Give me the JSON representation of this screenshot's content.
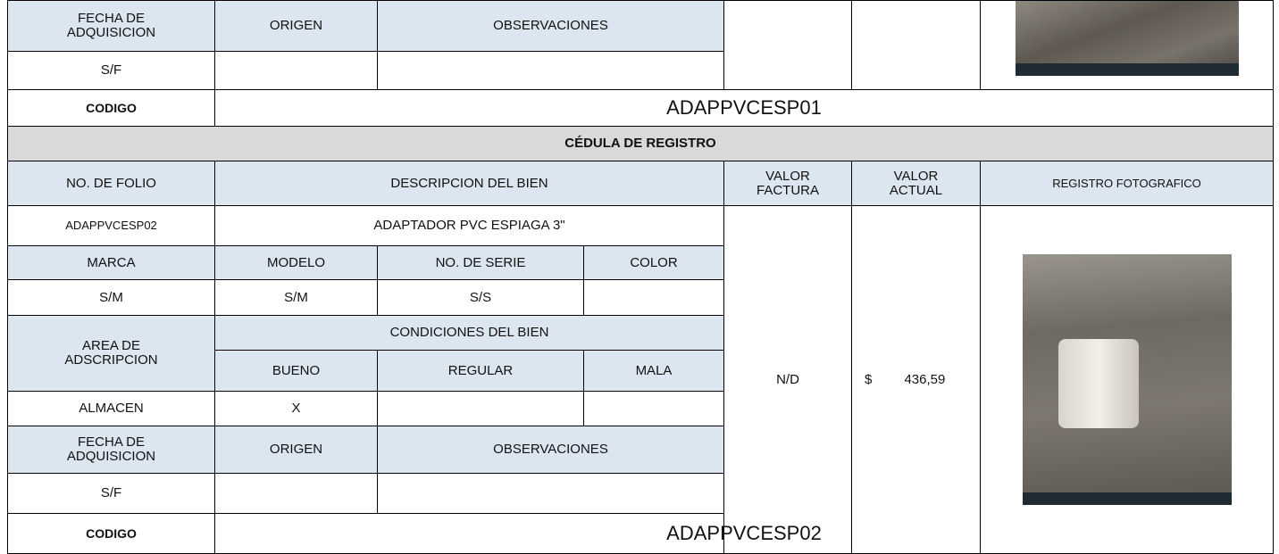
{
  "previous_record": {
    "acquisition_headers": [
      "FECHA DE ADQUISICION",
      "ORIGEN",
      "OBSERVACIONES"
    ],
    "acquisition_values": [
      "S/F"
    ],
    "code_label": "CODIGO",
    "code": "ADAPPVCESP01"
  },
  "record": {
    "title": "CÉDULA DE REGISTRO",
    "headers": [
      "NO. DE FOLIO",
      "DESCRIPCION DEL BIEN",
      "VALOR FACTURA",
      "VALOR ACTUAL",
      "REGISTRO FOTOGRAFICO"
    ],
    "folio": "ADAPPVCESP02",
    "description": "ADAPTADOR PVC ESPIAGA 3\"",
    "id_headers": [
      "MARCA",
      "MODELO",
      "NO. DE SERIE",
      "COLOR"
    ],
    "id_values": [
      "S/M",
      "S/M",
      "S/S"
    ],
    "area_label": "AREA DE ADSCRIPCION",
    "conditions_label": "CONDICIONES DEL BIEN",
    "conditions": [
      "BUENO",
      "REGULAR",
      "MALA"
    ],
    "area": "ALMACEN",
    "condition_mark": "X",
    "invoice_value": "N/D",
    "currency": "$",
    "current_value": "436,59",
    "acquisition_headers": [
      "FECHA DE ADQUISICION",
      "ORIGEN",
      "OBSERVACIONES"
    ],
    "acquisition_values": [
      "S/F"
    ],
    "code_label": "CODIGO",
    "code": "ADAPPVCESP02"
  }
}
